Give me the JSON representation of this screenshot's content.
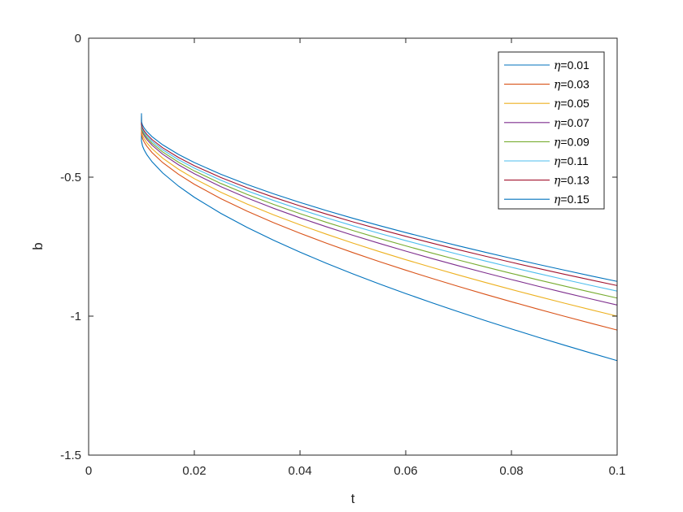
{
  "chart_data": {
    "type": "line",
    "title": "",
    "xlabel": "t",
    "ylabel": "b",
    "xlim": [
      0,
      0.1
    ],
    "ylim": [
      -1.5,
      0
    ],
    "xticks": [
      0,
      0.02,
      0.04,
      0.06,
      0.08,
      0.1
    ],
    "xtick_labels": [
      "0",
      "0.02",
      "0.04",
      "0.06",
      "0.08",
      "0.1"
    ],
    "yticks": [
      -1.5,
      -1,
      -0.5,
      0
    ],
    "ytick_labels": [
      "-1.5",
      "-1",
      "-0.5",
      "0"
    ],
    "grid": false,
    "legend_position": "top-right",
    "x": [
      0.01,
      0.0102,
      0.0105,
      0.011,
      0.012,
      0.014,
      0.017,
      0.02,
      0.025,
      0.03,
      0.035,
      0.04,
      0.045,
      0.05,
      0.055,
      0.06,
      0.065,
      0.07,
      0.075,
      0.08,
      0.085,
      0.09,
      0.095,
      0.1
    ],
    "series": [
      {
        "prefix": "η",
        "name": "=0.01",
        "color": "#0072BD",
        "stop": -0.37,
        "end": -1.16
      },
      {
        "prefix": "η",
        "name": "=0.03",
        "color": "#D95319",
        "stop": -0.345,
        "end": -1.05
      },
      {
        "prefix": "η",
        "name": "=0.05",
        "color": "#EDB120",
        "stop": -0.335,
        "end": -1.0
      },
      {
        "prefix": "η",
        "name": "=0.07",
        "color": "#7E2F8E",
        "stop": -0.325,
        "end": -0.96
      },
      {
        "prefix": "η",
        "name": "=0.09",
        "color": "#77AC30",
        "stop": -0.32,
        "end": -0.935
      },
      {
        "prefix": "η",
        "name": "=0.11",
        "color": "#4DBEEE",
        "stop": -0.315,
        "end": -0.91
      },
      {
        "prefix": "η",
        "name": "=0.13",
        "color": "#A2142F",
        "stop": -0.31,
        "end": -0.89
      },
      {
        "prefix": "η",
        "name": "=0.15",
        "color": "#0072BD",
        "stop": -0.3,
        "end": -0.875
      }
    ]
  }
}
